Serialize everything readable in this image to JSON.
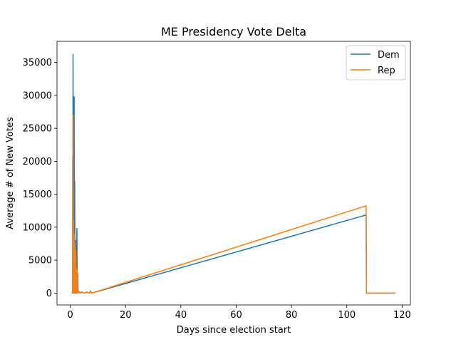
{
  "chart_data": {
    "type": "line",
    "title": "ME Presidency Vote Delta",
    "xlabel": "Days since election start",
    "ylabel": "Average # of New Votes",
    "xlim": [
      -4.8,
      123.0
    ],
    "ylim": [
      -1800,
      38200
    ],
    "xticks": [
      0,
      20,
      40,
      60,
      80,
      100,
      120
    ],
    "yticks": [
      0,
      5000,
      10000,
      15000,
      20000,
      25000,
      30000,
      35000
    ],
    "grid": false,
    "legend_position": "top-right",
    "series": [
      {
        "name": "Dem",
        "color": "#1f77b4",
        "points": [
          [
            0.5,
            0
          ],
          [
            0.8,
            0
          ],
          [
            0.9,
            20800
          ],
          [
            0.95,
            0
          ],
          [
            1.0,
            36200
          ],
          [
            1.1,
            0
          ],
          [
            1.2,
            14000
          ],
          [
            1.3,
            0
          ],
          [
            1.4,
            29800
          ],
          [
            1.5,
            0
          ],
          [
            1.6,
            17000
          ],
          [
            1.7,
            0
          ],
          [
            1.9,
            8000
          ],
          [
            2.0,
            0
          ],
          [
            2.1,
            4500
          ],
          [
            2.2,
            0
          ],
          [
            2.4,
            9800
          ],
          [
            2.5,
            0
          ],
          [
            2.7,
            3000
          ],
          [
            2.8,
            0
          ],
          [
            3.0,
            300
          ],
          [
            3.5,
            0
          ],
          [
            4.0,
            200
          ],
          [
            5.0,
            0
          ],
          [
            6.0,
            150
          ],
          [
            7.0,
            0
          ],
          [
            7.3,
            350
          ],
          [
            7.8,
            0
          ],
          [
            107.0,
            11850
          ],
          [
            107.1,
            0
          ],
          [
            117.5,
            0
          ]
        ]
      },
      {
        "name": "Rep",
        "color": "#ff7f0e",
        "points": [
          [
            0.5,
            0
          ],
          [
            0.8,
            0
          ],
          [
            0.9,
            16500
          ],
          [
            0.95,
            0
          ],
          [
            1.0,
            27000
          ],
          [
            1.1,
            0
          ],
          [
            1.2,
            11000
          ],
          [
            1.3,
            0
          ],
          [
            1.4,
            9000
          ],
          [
            1.5,
            0
          ],
          [
            1.6,
            7500
          ],
          [
            1.7,
            0
          ],
          [
            1.8,
            4500
          ],
          [
            1.9,
            0
          ],
          [
            2.0,
            6500
          ],
          [
            2.1,
            0
          ],
          [
            2.2,
            3800
          ],
          [
            2.3,
            0
          ],
          [
            2.5,
            3500
          ],
          [
            2.6,
            0
          ],
          [
            3.0,
            250
          ],
          [
            3.5,
            0
          ],
          [
            4.0,
            150
          ],
          [
            5.0,
            0
          ],
          [
            6.0,
            100
          ],
          [
            7.0,
            0
          ],
          [
            7.3,
            300
          ],
          [
            7.8,
            0
          ],
          [
            107.0,
            13250
          ],
          [
            107.1,
            0
          ],
          [
            117.5,
            0
          ]
        ]
      }
    ]
  }
}
